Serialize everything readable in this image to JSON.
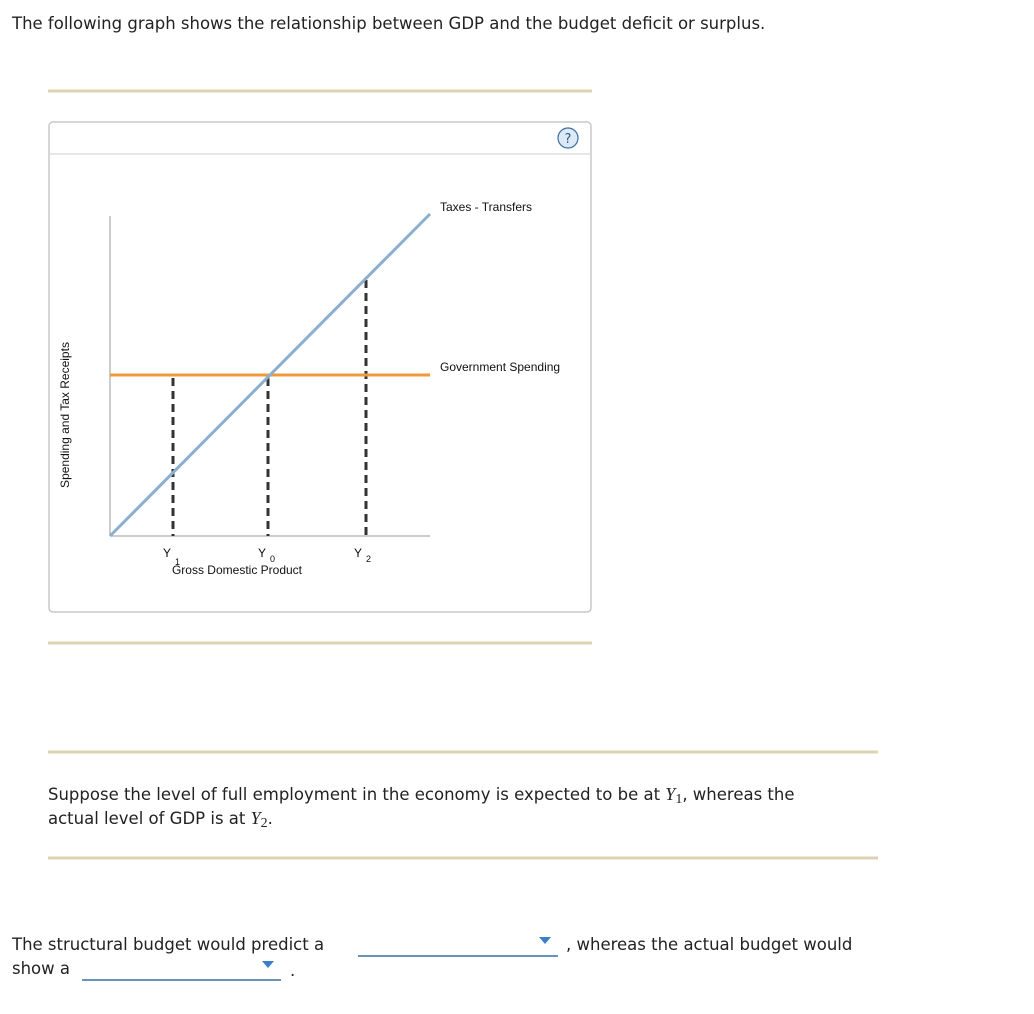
{
  "intro": "The following graph shows the relationship between GDP and the budget deficit or surplus.",
  "graph": {
    "help": "?",
    "y_axis_label": "Spending and Tax Receipts",
    "x_axis_label": "Gross Domestic Product",
    "lines": [
      {
        "label": "Taxes - Transfers"
      },
      {
        "label": "Government Spending"
      }
    ],
    "x_markers": [
      {
        "letter": "Y",
        "sub": "1"
      },
      {
        "letter": "Y",
        "sub": "0"
      },
      {
        "letter": "Y",
        "sub": "2"
      }
    ]
  },
  "question": {
    "line1_start": "Suppose the level of full employment in the economy is expected to be at ",
    "var1": "Y",
    "var1_sub": "1",
    "line1_end": ", whereas the",
    "line2_start": "actual level of GDP is at ",
    "var2": "Y",
    "var2_sub": "2",
    "line2_end": "."
  },
  "answer": {
    "part1": "The structural budget would predict a",
    "part2": ", whereas the actual budget would",
    "part3": "show a",
    "part4": "."
  }
}
